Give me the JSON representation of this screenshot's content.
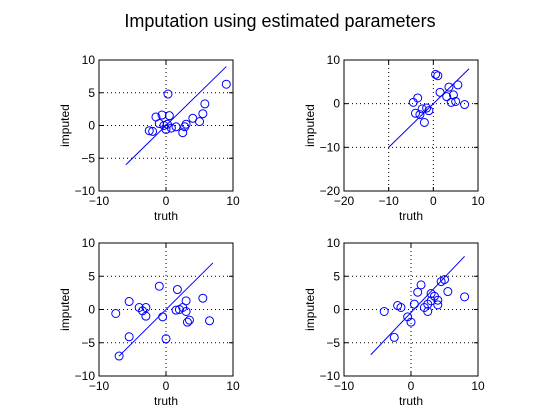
{
  "figure": {
    "title": "Imputation using estimated parameters"
  },
  "chart_data": [
    {
      "type": "scatter",
      "xlabel": "truth",
      "ylabel": "imputed",
      "xlim": [
        -10,
        10
      ],
      "ylim": [
        -10,
        10
      ],
      "xticks": [
        -10,
        0,
        10
      ],
      "yticks": [
        -10,
        -5,
        0,
        5,
        10
      ],
      "grid": true,
      "marker": "circle",
      "color": "#0000ff",
      "points": [
        [
          -2.5,
          -0.8
        ],
        [
          -2.0,
          -0.9
        ],
        [
          -1.5,
          1.3
        ],
        [
          -1.0,
          0.3
        ],
        [
          -0.6,
          1.6
        ],
        [
          -0.3,
          0.0
        ],
        [
          0.0,
          -0.6
        ],
        [
          0.2,
          0.2
        ],
        [
          0.3,
          4.8
        ],
        [
          0.5,
          1.5
        ],
        [
          0.8,
          -0.4
        ],
        [
          1.5,
          -0.2
        ],
        [
          2.5,
          -1.1
        ],
        [
          2.8,
          -0.2
        ],
        [
          3.0,
          0.2
        ],
        [
          4.0,
          1.1
        ],
        [
          5.0,
          0.6
        ],
        [
          5.5,
          1.8
        ],
        [
          5.8,
          3.3
        ],
        [
          9.0,
          6.3
        ]
      ],
      "line": {
        "x": [
          -6,
          9
        ],
        "y": [
          -6,
          9
        ]
      }
    },
    {
      "type": "scatter",
      "xlabel": "truth",
      "ylabel": "imputed",
      "xlim": [
        -20,
        10
      ],
      "ylim": [
        -20,
        10
      ],
      "xticks": [
        -20,
        -10,
        0,
        10
      ],
      "yticks": [
        -20,
        -10,
        0,
        10
      ],
      "grid": true,
      "marker": "circle",
      "color": "#0000ff",
      "points": [
        [
          -4.5,
          0.3
        ],
        [
          -4.0,
          -2.2
        ],
        [
          -3.5,
          1.3
        ],
        [
          -3.0,
          -2.5
        ],
        [
          -2.5,
          -1.2
        ],
        [
          -2.0,
          -4.3
        ],
        [
          -1.5,
          -1.0
        ],
        [
          -1.0,
          -1.6
        ],
        [
          0.5,
          6.7
        ],
        [
          1.0,
          6.4
        ],
        [
          1.5,
          2.6
        ],
        [
          3.0,
          1.6
        ],
        [
          3.5,
          3.8
        ],
        [
          4.0,
          0.3
        ],
        [
          4.5,
          2.0
        ],
        [
          5.0,
          0.5
        ],
        [
          5.5,
          4.3
        ],
        [
          7.0,
          -0.2
        ]
      ],
      "line": {
        "x": [
          -10,
          8
        ],
        "y": [
          -10,
          8
        ]
      }
    },
    {
      "type": "scatter",
      "xlabel": "truth",
      "ylabel": "imputed",
      "xlim": [
        -10,
        10
      ],
      "ylim": [
        -10,
        10
      ],
      "xticks": [
        -10,
        0,
        10
      ],
      "yticks": [
        -10,
        -5,
        0,
        5,
        10
      ],
      "grid": true,
      "marker": "circle",
      "color": "#0000ff",
      "points": [
        [
          -7.5,
          -0.6
        ],
        [
          -7.0,
          -7.0
        ],
        [
          -5.5,
          -4.1
        ],
        [
          -5.5,
          1.2
        ],
        [
          -4.0,
          0.3
        ],
        [
          -3.5,
          -0.2
        ],
        [
          -3.0,
          -1.0
        ],
        [
          -3.0,
          0.3
        ],
        [
          -1.0,
          3.5
        ],
        [
          -0.5,
          -1.1
        ],
        [
          0.0,
          -4.4
        ],
        [
          1.5,
          -0.1
        ],
        [
          1.7,
          3.0
        ],
        [
          2.0,
          0.0
        ],
        [
          2.5,
          0.3
        ],
        [
          3.0,
          1.3
        ],
        [
          3.0,
          -0.3
        ],
        [
          3.2,
          -1.9
        ],
        [
          3.5,
          -1.6
        ],
        [
          5.5,
          1.7
        ],
        [
          6.5,
          -1.7
        ]
      ],
      "line": {
        "x": [
          -7,
          7
        ],
        "y": [
          -7,
          7
        ]
      }
    },
    {
      "type": "scatter",
      "xlabel": "truth",
      "ylabel": "imputed",
      "xlim": [
        -10,
        10
      ],
      "ylim": [
        -10,
        10
      ],
      "xticks": [
        -10,
        0,
        10
      ],
      "yticks": [
        -10,
        -5,
        0,
        5,
        10
      ],
      "grid": true,
      "marker": "circle",
      "color": "#0000ff",
      "points": [
        [
          -4.0,
          -0.3
        ],
        [
          -2.5,
          -4.2
        ],
        [
          -2.0,
          0.6
        ],
        [
          -1.5,
          0.3
        ],
        [
          -0.5,
          -1.1
        ],
        [
          0.0,
          -1.9
        ],
        [
          0.5,
          0.8
        ],
        [
          1.0,
          2.6
        ],
        [
          1.5,
          3.7
        ],
        [
          2.0,
          0.3
        ],
        [
          2.5,
          0.8
        ],
        [
          2.5,
          -0.3
        ],
        [
          3.0,
          1.3
        ],
        [
          3.0,
          2.4
        ],
        [
          3.5,
          2.0
        ],
        [
          4.0,
          1.4
        ],
        [
          4.0,
          0.7
        ],
        [
          4.5,
          4.2
        ],
        [
          5.0,
          4.5
        ],
        [
          5.5,
          2.7
        ],
        [
          8.0,
          1.9
        ]
      ],
      "line": {
        "x": [
          -6,
          8
        ],
        "y": [
          -6.8,
          8
        ]
      }
    }
  ]
}
